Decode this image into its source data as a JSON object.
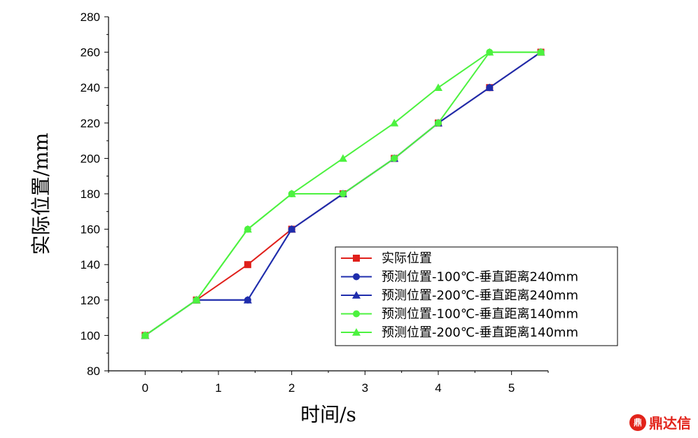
{
  "chart_data": {
    "type": "line",
    "xlabel": "时间/s",
    "ylabel": "实际位置/mm",
    "xlim": [
      -0.5,
      5.5
    ],
    "ylim": [
      80,
      280
    ],
    "xticks": [
      0,
      1,
      2,
      3,
      4,
      5
    ],
    "yticks": [
      80,
      100,
      120,
      140,
      160,
      180,
      200,
      220,
      240,
      260,
      280
    ],
    "legend_position": "bottom-right",
    "series": [
      {
        "name": "实际位置",
        "color": "#e0201b",
        "marker": "square",
        "x": [
          0,
          0.7,
          1.4,
          2.0,
          2.7,
          3.4,
          4.0,
          4.7,
          5.4
        ],
        "y": [
          100,
          120,
          140,
          160,
          180,
          200,
          220,
          240,
          260
        ]
      },
      {
        "name": "预测位置-100℃-垂直距离240mm",
        "color": "#1f2dac",
        "marker": "circle",
        "x": [
          0,
          0.7,
          1.4,
          2.0,
          2.7,
          3.4,
          4.0,
          4.7,
          5.4
        ],
        "y": [
          100,
          120,
          120,
          160,
          180,
          200,
          220,
          240,
          260
        ]
      },
      {
        "name": "预测位置-200℃-垂直距离240mm",
        "color": "#1f2dac",
        "marker": "triangle",
        "x": [
          0,
          0.7,
          1.4,
          2.0,
          2.7,
          3.4,
          4.0,
          4.7,
          5.4
        ],
        "y": [
          100,
          120,
          120,
          160,
          180,
          200,
          220,
          240,
          260
        ]
      },
      {
        "name": "预测位置-100℃-垂直距离140mm",
        "color": "#4cf23f",
        "marker": "circle",
        "x": [
          0,
          0.7,
          1.4,
          2.0,
          2.7,
          3.4,
          4.0,
          4.7,
          5.4
        ],
        "y": [
          100,
          120,
          160,
          180,
          180,
          200,
          220,
          260,
          260
        ]
      },
      {
        "name": "预测位置-200℃-垂直距离140mm",
        "color": "#4cf23f",
        "marker": "triangle",
        "x": [
          0,
          0.7,
          1.4,
          2.0,
          2.7,
          3.4,
          4.0,
          4.7,
          5.4
        ],
        "y": [
          100,
          120,
          160,
          180,
          200,
          220,
          240,
          260,
          260
        ]
      }
    ]
  },
  "watermark": {
    "logo_text": "鼎",
    "text": "鼎达信"
  }
}
